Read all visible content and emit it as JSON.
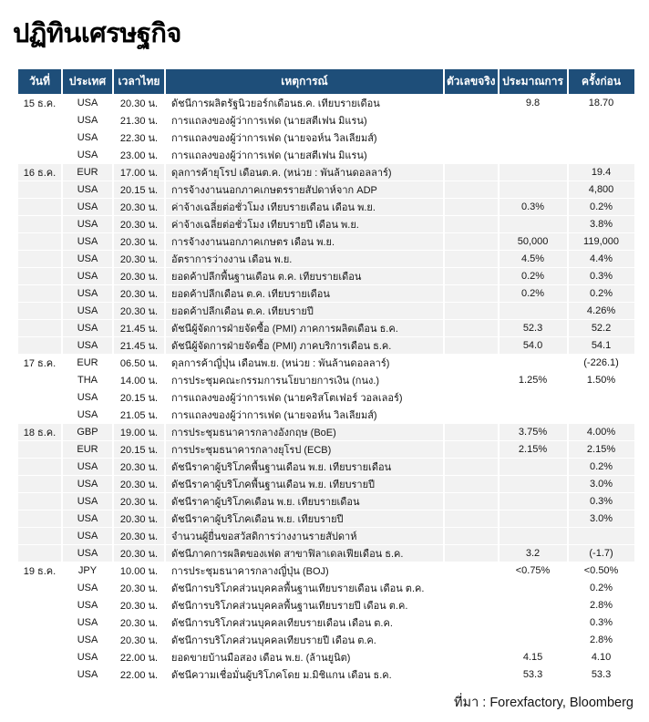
{
  "page_title": "ปฏิทินเศรษฐกิจ",
  "colors": {
    "header_bg": "#1E4E79",
    "header_text": "#FFFFFF",
    "group_alt_bg": "#F2F2F2",
    "group_bg": "#FFFFFF",
    "text": "#141414"
  },
  "footer": {
    "source_label": "ที่มา : Forexfactory, Bloomberg"
  },
  "table": {
    "columns": [
      {
        "key": "date",
        "label": "วันที่"
      },
      {
        "key": "country",
        "label": "ประเทศ"
      },
      {
        "key": "time",
        "label": "เวลาไทย"
      },
      {
        "key": "event",
        "label": "เหตุการณ์"
      },
      {
        "key": "actual",
        "label": "ตัวเลขจริง"
      },
      {
        "key": "forecast",
        "label": "ประมาณการ"
      },
      {
        "key": "previous",
        "label": "ครั้งก่อน"
      }
    ],
    "groups": [
      {
        "date": "15 ธ.ค.",
        "rows": [
          {
            "country": "USA",
            "time": "20.30 น.",
            "event": "ดัชนีการผลิตรัฐนิวยอร์กเดือนธ.ค. เทียบรายเดือน",
            "actual": "",
            "forecast": "9.8",
            "previous": "18.70"
          },
          {
            "country": "USA",
            "time": "21.30 น.",
            "event": "การแถลงของผู้ว่าการเฟด (นายสตีเฟน มิแรน)",
            "actual": "",
            "forecast": "",
            "previous": ""
          },
          {
            "country": "USA",
            "time": "22.30 น.",
            "event": "การแถลงของผู้ว่าการเฟด (นายจอห์น วิลเลียมส์)",
            "actual": "",
            "forecast": "",
            "previous": ""
          },
          {
            "country": "USA",
            "time": "23.00 น.",
            "event": "การแถลงของผู้ว่าการเฟด (นายสตีเฟน มิแรน)",
            "actual": "",
            "forecast": "",
            "previous": ""
          }
        ]
      },
      {
        "date": "16 ธ.ค.",
        "rows": [
          {
            "country": "EUR",
            "time": "17.00 น.",
            "event": "ดุลการค้ายุโรป เดือนต.ค. (หน่วย : พันล้านดอลลาร์)",
            "actual": "",
            "forecast": "",
            "previous": "19.4"
          },
          {
            "country": "USA",
            "time": "20.15 น.",
            "event": "การจ้างงานนอกภาคเกษตรรายสัปดาห์จาก ADP",
            "actual": "",
            "forecast": "",
            "previous": "4,800"
          },
          {
            "country": "USA",
            "time": "20.30 น.",
            "event": "ค่าจ้างเฉลี่ยต่อชั่วโมง เทียบรายเดือน เดือน พ.ย.",
            "actual": "",
            "forecast": "0.3%",
            "previous": "0.2%"
          },
          {
            "country": "USA",
            "time": "20.30 น.",
            "event": "ค่าจ้างเฉลี่ยต่อชั่วโมง เทียบรายปี เดือน พ.ย.",
            "actual": "",
            "forecast": "",
            "previous": "3.8%"
          },
          {
            "country": "USA",
            "time": "20.30 น.",
            "event": "การจ้างงานนอกภาคเกษตร เดือน พ.ย.",
            "actual": "",
            "forecast": "50,000",
            "previous": "119,000"
          },
          {
            "country": "USA",
            "time": "20.30 น.",
            "event": "อัตราการว่างงาน เดือน พ.ย.",
            "actual": "",
            "forecast": "4.5%",
            "previous": "4.4%"
          },
          {
            "country": "USA",
            "time": "20.30 น.",
            "event": "ยอดค้าปลีกพื้นฐานเดือน ต.ค. เทียบรายเดือน",
            "actual": "",
            "forecast": "0.2%",
            "previous": "0.3%"
          },
          {
            "country": "USA",
            "time": "20.30 น.",
            "event": "ยอดค้าปลีกเดือน ต.ค. เทียบรายเดือน",
            "actual": "",
            "forecast": "0.2%",
            "previous": "0.2%"
          },
          {
            "country": "USA",
            "time": "20.30 น.",
            "event": "ยอดค้าปลีกเดือน ต.ค. เทียบรายปี",
            "actual": "",
            "forecast": "",
            "previous": "4.26%"
          },
          {
            "country": "USA",
            "time": "21.45 น.",
            "event": "ดัชนีผู้จัดการฝ่ายจัดซื้อ (PMI) ภาคการผลิตเดือน ธ.ค.",
            "actual": "",
            "forecast": "52.3",
            "previous": "52.2"
          },
          {
            "country": "USA",
            "time": "21.45 น.",
            "event": "ดัชนีผู้จัดการฝ่ายจัดซื้อ (PMI) ภาคบริการเดือน ธ.ค.",
            "actual": "",
            "forecast": "54.0",
            "previous": "54.1"
          }
        ]
      },
      {
        "date": "17 ธ.ค.",
        "rows": [
          {
            "country": "EUR",
            "time": "06.50 น.",
            "event": "ดุลการค้าญี่ปุ่น เดือนพ.ย. (หน่วย : พันล้านดอลลาร์)",
            "actual": "",
            "forecast": "",
            "previous": "(-226.1)"
          },
          {
            "country": "THA",
            "time": "14.00 น.",
            "event": "การประชุมคณะกรรมการนโยบายการเงิน (กนง.)",
            "actual": "",
            "forecast": "1.25%",
            "previous": "1.50%"
          },
          {
            "country": "USA",
            "time": "20.15 น.",
            "event": "การแถลงของผู้ว่าการเฟด (นายคริสโตเฟอร์ วอลเลอร์)",
            "actual": "",
            "forecast": "",
            "previous": ""
          },
          {
            "country": "USA",
            "time": "21.05 น.",
            "event": "การแถลงของผู้ว่าการเฟด (นายจอห์น วิลเลียมส์)",
            "actual": "",
            "forecast": "",
            "previous": ""
          }
        ]
      },
      {
        "date": "18 ธ.ค.",
        "rows": [
          {
            "country": "GBP",
            "time": "19.00 น.",
            "event": "การประชุมธนาคารกลางอังกฤษ (BoE)",
            "actual": "",
            "forecast": "3.75%",
            "previous": "4.00%"
          },
          {
            "country": "EUR",
            "time": "20.15 น.",
            "event": "การประชุมธนาคารกลางยุโรป (ECB)",
            "actual": "",
            "forecast": "2.15%",
            "previous": "2.15%"
          },
          {
            "country": "USA",
            "time": "20.30 น.",
            "event": "ดัชนีราคาผู้บริโภคพื้นฐานเดือน พ.ย. เทียบรายเดือน",
            "actual": "",
            "forecast": "",
            "previous": "0.2%"
          },
          {
            "country": "USA",
            "time": "20.30 น.",
            "event": "ดัชนีราคาผู้บริโภคพื้นฐานเดือน พ.ย. เทียบรายปี",
            "actual": "",
            "forecast": "",
            "previous": "3.0%"
          },
          {
            "country": "USA",
            "time": "20.30 น.",
            "event": "ดัชนีราคาผู้บริโภคเดือน พ.ย. เทียบรายเดือน",
            "actual": "",
            "forecast": "",
            "previous": "0.3%"
          },
          {
            "country": "USA",
            "time": "20.30 น.",
            "event": "ดัชนีราคาผู้บริโภคเดือน พ.ย. เทียบรายปี",
            "actual": "",
            "forecast": "",
            "previous": "3.0%"
          },
          {
            "country": "USA",
            "time": "20.30 น.",
            "event": "จำนวนผู้ยื่นขอสวัสดิการว่างงานรายสัปดาห์",
            "actual": "",
            "forecast": "",
            "previous": ""
          },
          {
            "country": "USA",
            "time": "20.30 น.",
            "event": "ดัชนีภาคการผลิตของเฟด สาขาฟิลาเดลเฟียเดือน ธ.ค.",
            "actual": "",
            "forecast": "3.2",
            "previous": "(-1.7)"
          }
        ]
      },
      {
        "date": "19 ธ.ค.",
        "rows": [
          {
            "country": "JPY",
            "time": "10.00 น.",
            "event": "การประชุมธนาคารกลางญี่ปุ่น (BOJ)",
            "actual": "",
            "forecast": "<0.75%",
            "previous": "<0.50%"
          },
          {
            "country": "USA",
            "time": "20.30 น.",
            "event": "ดัชนีการบริโภคส่วนบุคคลพื้นฐานเทียบรายเดือน เดือน ต.ค.",
            "actual": "",
            "forecast": "",
            "previous": "0.2%"
          },
          {
            "country": "USA",
            "time": "20.30 น.",
            "event": "ดัชนีการบริโภคส่วนบุคคลพื้นฐานเทียบรายปี เดือน ต.ค.",
            "actual": "",
            "forecast": "",
            "previous": "2.8%"
          },
          {
            "country": "USA",
            "time": "20.30 น.",
            "event": "ดัชนีการบริโภคส่วนบุคคลเทียบรายเดือน เดือน ต.ค.",
            "actual": "",
            "forecast": "",
            "previous": "0.3%"
          },
          {
            "country": "USA",
            "time": "20.30 น.",
            "event": "ดัชนีการบริโภคส่วนบุคคลเทียบรายปี เดือน ต.ค.",
            "actual": "",
            "forecast": "",
            "previous": "2.8%"
          },
          {
            "country": "USA",
            "time": "22.00 น.",
            "event": "ยอดขายบ้านมือสอง เดือน พ.ย. (ล้านยูนิต)",
            "actual": "",
            "forecast": "4.15",
            "previous": "4.10"
          },
          {
            "country": "USA",
            "time": "22.00 น.",
            "event": "ดัชนีความเชื่อมั่นผู้บริโภคโดย ม.มิชิแกน เดือน ธ.ค.",
            "actual": "",
            "forecast": "53.3",
            "previous": "53.3"
          }
        ]
      }
    ]
  }
}
